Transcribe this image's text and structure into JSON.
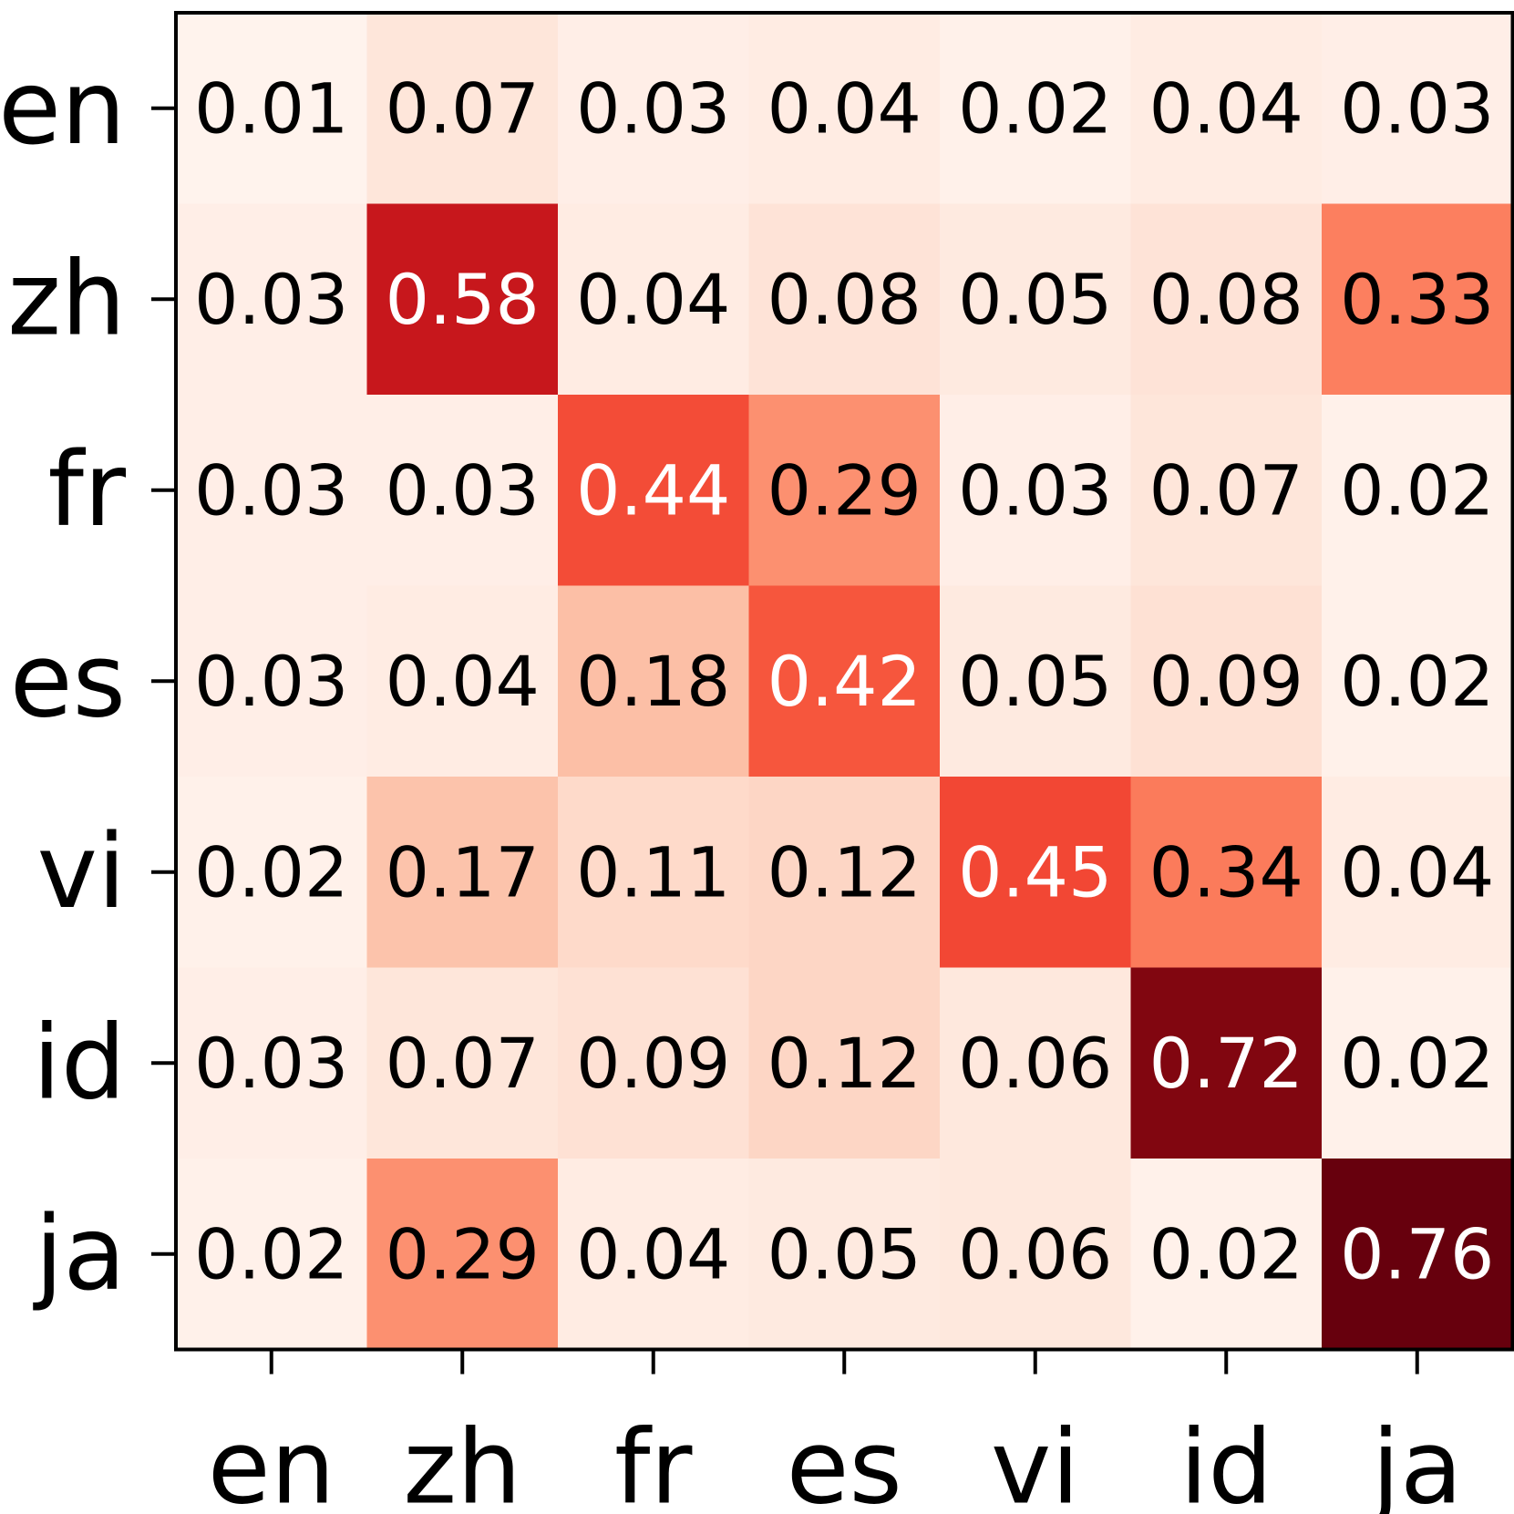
{
  "chart_data": {
    "type": "heatmap",
    "title": "",
    "xlabel": "",
    "ylabel": "",
    "x_categories": [
      "en",
      "zh",
      "fr",
      "es",
      "vi",
      "id",
      "ja"
    ],
    "y_categories": [
      "en",
      "zh",
      "fr",
      "es",
      "vi",
      "id",
      "ja"
    ],
    "values": [
      [
        0.01,
        0.07,
        0.03,
        0.04,
        0.02,
        0.04,
        0.03
      ],
      [
        0.03,
        0.58,
        0.04,
        0.08,
        0.05,
        0.08,
        0.33
      ],
      [
        0.03,
        0.03,
        0.44,
        0.29,
        0.03,
        0.07,
        0.02
      ],
      [
        0.03,
        0.04,
        0.18,
        0.42,
        0.05,
        0.09,
        0.02
      ],
      [
        0.02,
        0.17,
        0.11,
        0.12,
        0.45,
        0.34,
        0.04
      ],
      [
        0.03,
        0.07,
        0.09,
        0.12,
        0.06,
        0.72,
        0.02
      ],
      [
        0.02,
        0.29,
        0.04,
        0.05,
        0.06,
        0.02,
        0.76
      ]
    ],
    "value_range": [
      0.0,
      0.76
    ],
    "colormap": "Reds",
    "colorbar": false,
    "grid": false
  }
}
